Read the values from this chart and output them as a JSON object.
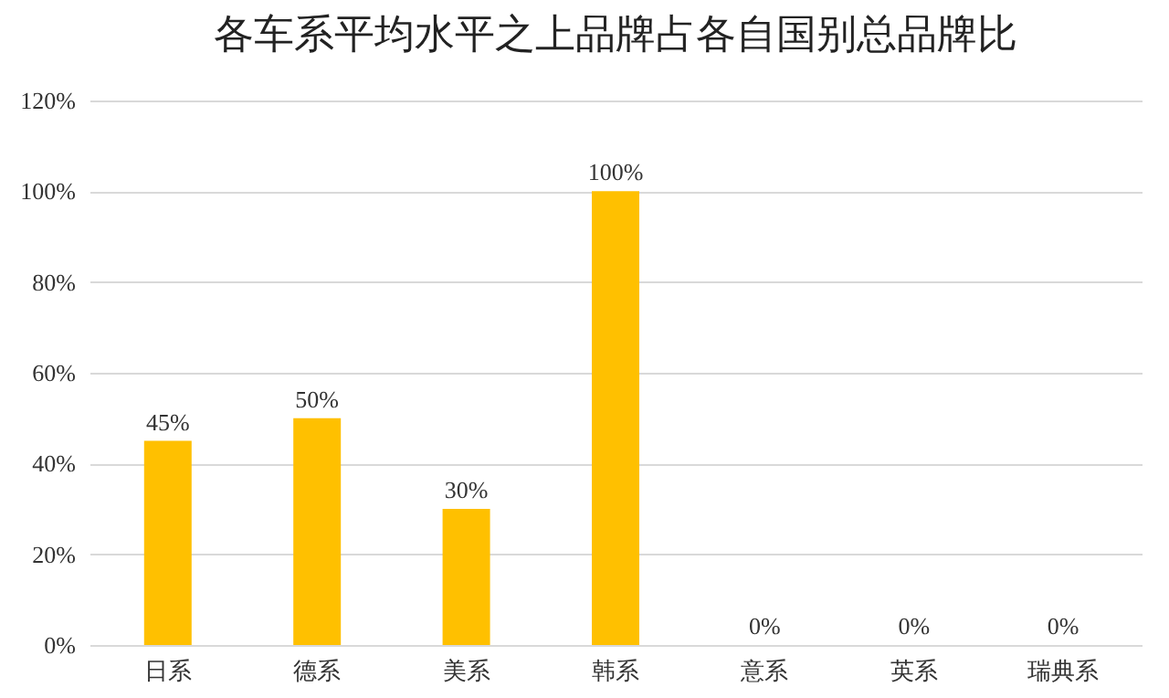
{
  "chart_data": {
    "type": "bar",
    "title": "各车系平均水平之上品牌占各自国别总品牌比",
    "categories": [
      "日系",
      "德系",
      "美系",
      "韩系",
      "意系",
      "英系",
      "瑞典系"
    ],
    "values": [
      45,
      50,
      30,
      100,
      0,
      0,
      0
    ],
    "value_labels": [
      "45%",
      "50%",
      "30%",
      "100%",
      "0%",
      "0%",
      "0%"
    ],
    "color": "#ffc000",
    "ylim": [
      0,
      120
    ],
    "yticks": [
      {
        "value": 0,
        "label": "0%"
      },
      {
        "value": 20,
        "label": "20%"
      },
      {
        "value": 40,
        "label": "40%"
      },
      {
        "value": 60,
        "label": "60%"
      },
      {
        "value": 80,
        "label": "80%"
      },
      {
        "value": 100,
        "label": "100%"
      },
      {
        "value": 120,
        "label": "120%"
      }
    ],
    "grid": "y"
  }
}
